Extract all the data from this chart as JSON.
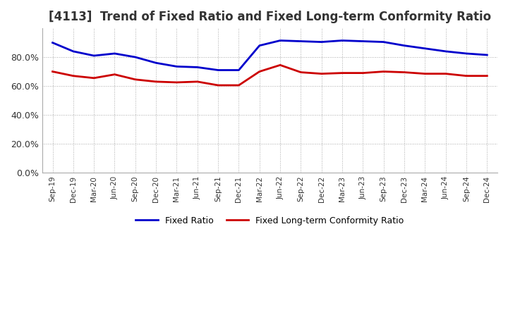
{
  "title": "[4113]  Trend of Fixed Ratio and Fixed Long-term Conformity Ratio",
  "x_labels": [
    "Sep-19",
    "Dec-19",
    "Mar-20",
    "Jun-20",
    "Sep-20",
    "Dec-20",
    "Mar-21",
    "Jun-21",
    "Sep-21",
    "Dec-21",
    "Mar-22",
    "Jun-22",
    "Sep-22",
    "Dec-22",
    "Mar-23",
    "Jun-23",
    "Sep-23",
    "Dec-23",
    "Mar-24",
    "Jun-24",
    "Sep-24",
    "Dec-24"
  ],
  "fixed_ratio": [
    90.0,
    84.0,
    81.0,
    82.5,
    80.0,
    76.0,
    73.5,
    73.0,
    71.0,
    71.0,
    88.0,
    91.5,
    91.0,
    90.5,
    91.5,
    91.0,
    90.5,
    88.0,
    86.0,
    84.0,
    82.5,
    81.5
  ],
  "fixed_lt_ratio": [
    70.0,
    67.0,
    65.5,
    68.0,
    64.5,
    63.0,
    62.5,
    63.0,
    60.5,
    60.5,
    70.0,
    74.5,
    69.5,
    68.5,
    69.0,
    69.0,
    70.0,
    69.5,
    68.5,
    68.5,
    67.0,
    67.0
  ],
  "fixed_ratio_color": "#0000cc",
  "fixed_lt_ratio_color": "#cc0000",
  "ylim": [
    0,
    100
  ],
  "yticks": [
    0,
    20,
    40,
    60,
    80
  ],
  "ytick_labels": [
    "0.0%",
    "20.0%",
    "40.0%",
    "60.0%",
    "80.0%"
  ],
  "bg_color": "#ffffff",
  "grid_color": "#aaaaaa",
  "title_fontsize": 12,
  "legend_labels": [
    "Fixed Ratio",
    "Fixed Long-term Conformity Ratio"
  ],
  "line_width": 2.0
}
